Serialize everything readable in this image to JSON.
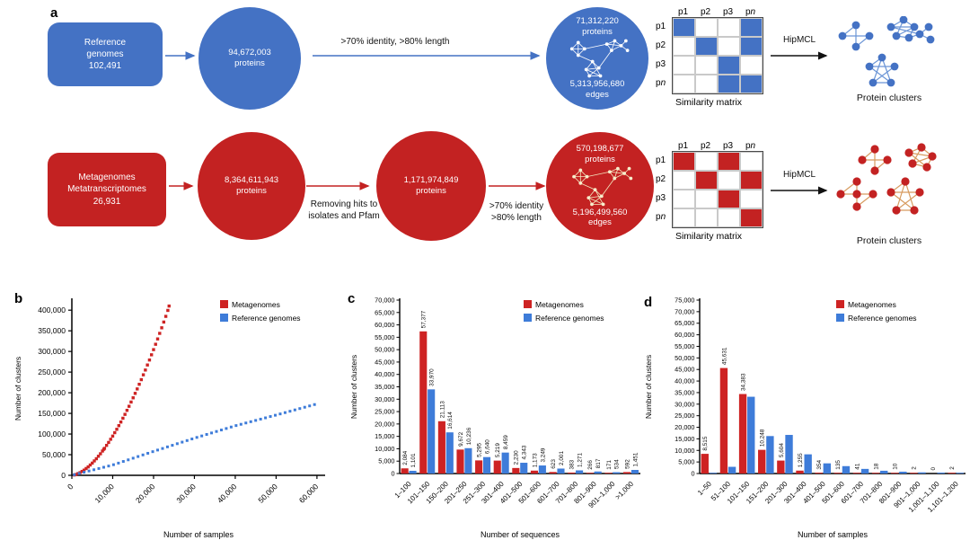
{
  "colors": {
    "diagram_blue": "#4472C4",
    "diagram_red": "#C32222",
    "chart_red": "#CE2323",
    "chart_blue": "#3E7CD9"
  },
  "panel_a": {
    "panel_label": "a",
    "ref": {
      "box": {
        "l1": "Reference",
        "l2": "genomes",
        "l3": "102,491"
      },
      "c1": {
        "l1": "94,672,003",
        "l2": "proteins"
      },
      "filter": ">70% identity, >80% length",
      "c2": {
        "top1": "71,312,220",
        "top2": "proteins",
        "bot1": "5,313,956,680",
        "bot2": "edges"
      },
      "matrix": {
        "cols": [
          "p1",
          "p2",
          "p3",
          "pn"
        ],
        "rows": [
          "p1",
          "p2",
          "p3",
          "pn"
        ],
        "cells": [
          [
            1,
            0,
            0,
            1
          ],
          [
            0,
            1,
            0,
            1
          ],
          [
            0,
            0,
            1,
            0
          ],
          [
            0,
            0,
            1,
            1
          ]
        ],
        "caption": "Similarity matrix"
      },
      "hipmcl": "HipMCL",
      "clusters_caption": "Protein clusters"
    },
    "meta": {
      "box": {
        "l1": "Metagenomes",
        "l2": "Metatranscriptomes",
        "l3": "26,931"
      },
      "c1": {
        "l1": "8,364,611,943",
        "l2": "proteins"
      },
      "remove1": "Removing hits to",
      "remove2": "isolates and Pfam",
      "c2": {
        "l1": "1,171,974,849",
        "l2": "proteins"
      },
      "filter1": ">70% identity",
      "filter2": ">80% length",
      "c3": {
        "top1": "570,198,677",
        "top2": "proteins",
        "bot1": "5,196,499,560",
        "bot2": "edges"
      },
      "matrix": {
        "cols": [
          "p1",
          "p2",
          "p3",
          "pn"
        ],
        "rows": [
          "p1",
          "p2",
          "p3",
          "pn"
        ],
        "cells": [
          [
            1,
            0,
            1,
            0
          ],
          [
            0,
            1,
            0,
            1
          ],
          [
            0,
            0,
            1,
            0
          ],
          [
            0,
            0,
            0,
            1
          ]
        ],
        "caption": "Similarity matrix"
      },
      "hipmcl": "HipMCL",
      "clusters_caption": "Protein clusters"
    }
  },
  "panel_labels": {
    "b": "b",
    "c": "c",
    "d": "d"
  },
  "chart_data": [
    {
      "id": "b",
      "type": "scatter",
      "xlabel": "Number of samples",
      "ylabel": "Number of clusters",
      "xlim": [
        0,
        62000
      ],
      "ylim": [
        0,
        420000
      ],
      "xticks": [
        0,
        10000,
        20000,
        30000,
        40000,
        50000,
        60000
      ],
      "yticks": [
        0,
        50000,
        100000,
        150000,
        200000,
        250000,
        300000,
        350000,
        400000
      ],
      "legend_position": "top-right",
      "series": [
        {
          "name": "Metagenomes",
          "color": "#CE2323",
          "points": [
            [
              600,
              800
            ],
            [
              1000,
              2000
            ],
            [
              1500,
              4200
            ],
            [
              2000,
              6400
            ],
            [
              2500,
              9500
            ],
            [
              3000,
              12600
            ],
            [
              3500,
              16500
            ],
            [
              4000,
              20400
            ],
            [
              4500,
              25000
            ],
            [
              5000,
              29600
            ],
            [
              5500,
              34900
            ],
            [
              6000,
              40200
            ],
            [
              6500,
              46200
            ],
            [
              7000,
              52200
            ],
            [
              7500,
              58800
            ],
            [
              7800,
              63000
            ],
            [
              8000,
              65300
            ],
            [
              8500,
              72500
            ],
            [
              9000,
              79600
            ],
            [
              9500,
              87300
            ],
            [
              10000,
              95000
            ],
            [
              10500,
              103300
            ],
            [
              11000,
              111500
            ],
            [
              11500,
              120300
            ],
            [
              12000,
              129000
            ],
            [
              12500,
              138300
            ],
            [
              13000,
              147600
            ],
            [
              13500,
              157400
            ],
            [
              14000,
              167200
            ],
            [
              14500,
              177500
            ],
            [
              15000,
              187700
            ],
            [
              15500,
              198500
            ],
            [
              16000,
              209200
            ],
            [
              16500,
              220500
            ],
            [
              17000,
              231700
            ],
            [
              17500,
              243400
            ],
            [
              18000,
              255000
            ],
            [
              18500,
              267200
            ],
            [
              19000,
              279300
            ],
            [
              19500,
              291900
            ],
            [
              20000,
              304400
            ],
            [
              20500,
              317400
            ],
            [
              21000,
              330300
            ],
            [
              21500,
              343800
            ],
            [
              22000,
              357300
            ],
            [
              22500,
              371200
            ],
            [
              23000,
              385000
            ],
            [
              23500,
              399400
            ],
            [
              23800,
              410000
            ]
          ]
        },
        {
          "name": "Reference genomes",
          "color": "#3E7CD9",
          "points": [
            [
              600,
              1500
            ],
            [
              1800,
              4500
            ],
            [
              3000,
              7500
            ],
            [
              4200,
              10500
            ],
            [
              5400,
              13500
            ],
            [
              6600,
              16500
            ],
            [
              7800,
              19500
            ],
            [
              9000,
              22500
            ],
            [
              10200,
              25700
            ],
            [
              11400,
              29600
            ],
            [
              12600,
              33600
            ],
            [
              13800,
              37500
            ],
            [
              15000,
              41500
            ],
            [
              16200,
              45500
            ],
            [
              17400,
              49400
            ],
            [
              18600,
              53400
            ],
            [
              19800,
              57300
            ],
            [
              21000,
              61200
            ],
            [
              22200,
              65000
            ],
            [
              23400,
              68900
            ],
            [
              24600,
              72700
            ],
            [
              25800,
              76600
            ],
            [
              27000,
              80400
            ],
            [
              28200,
              84200
            ],
            [
              29400,
              88100
            ],
            [
              30600,
              91800
            ],
            [
              31800,
              95400
            ],
            [
              33000,
              99000
            ],
            [
              34200,
              102600
            ],
            [
              35400,
              106200
            ],
            [
              36600,
              109800
            ],
            [
              37800,
              113400
            ],
            [
              39000,
              117000
            ],
            [
              40200,
              120500
            ],
            [
              41400,
              123600
            ],
            [
              42600,
              126800
            ],
            [
              43800,
              129900
            ],
            [
              45000,
              133000
            ],
            [
              46200,
              136100
            ],
            [
              47400,
              139200
            ],
            [
              48600,
              142400
            ],
            [
              49800,
              145500
            ],
            [
              51000,
              148700
            ],
            [
              52200,
              151900
            ],
            [
              53400,
              155200
            ],
            [
              54600,
              158400
            ],
            [
              55800,
              161700
            ],
            [
              57000,
              164900
            ],
            [
              58200,
              168100
            ],
            [
              59400,
              171400
            ]
          ]
        }
      ]
    },
    {
      "id": "c",
      "type": "bar",
      "xlabel": "Number of sequences",
      "ylabel": "Number of clusters",
      "ylim": [
        0,
        70000
      ],
      "ytick_step": 5000,
      "legend_position": "top-right",
      "categories": [
        "1–100",
        "101–150",
        "150–200",
        "201–250",
        "251–300",
        "301–400",
        "401–500",
        "501–600",
        "601–700",
        "701–800",
        "801–900",
        "901–1,000",
        ">1,000"
      ],
      "series": [
        {
          "name": "Metagenomes",
          "color": "#CE2323",
          "show_labels": true,
          "values": [
            2084,
            57377,
            21113,
            9672,
            5295,
            5219,
            2230,
            1173,
            623,
            383,
            266,
            171,
            592
          ]
        },
        {
          "name": "Reference genomes",
          "color": "#3E7CD9",
          "show_labels": true,
          "values": [
            1101,
            33970,
            16614,
            10236,
            6640,
            8459,
            4343,
            3249,
            2001,
            1271,
            817,
            534,
            1451
          ]
        }
      ]
    },
    {
      "id": "d",
      "type": "bar",
      "xlabel": "Number of samples",
      "ylabel": "Number of clusters",
      "ylim": [
        0,
        75000
      ],
      "ytick_step": 5000,
      "legend_position": "top-right",
      "categories": [
        "1–50",
        "51–100",
        "101–150",
        "151–200",
        "201–300",
        "301–400",
        "401–500",
        "501–600",
        "601–700",
        "701–800",
        "801–900",
        "901–1,000",
        "1,001–1,100",
        "1,101–1,200"
      ],
      "series": [
        {
          "name": "Metagenomes",
          "color": "#CE2323",
          "show_labels": true,
          "values": [
            8515,
            45631,
            34383,
            10248,
            5604,
            1255,
            354,
            135,
            41,
            18,
            10,
            2,
            0,
            2
          ]
        },
        {
          "name": "Reference genomes",
          "color": "#3E7CD9",
          "show_labels": false,
          "values": [
            300,
            2900,
            33200,
            16200,
            16700,
            8300,
            4400,
            3200,
            2000,
            1200,
            800,
            500,
            400,
            250
          ]
        }
      ]
    }
  ]
}
